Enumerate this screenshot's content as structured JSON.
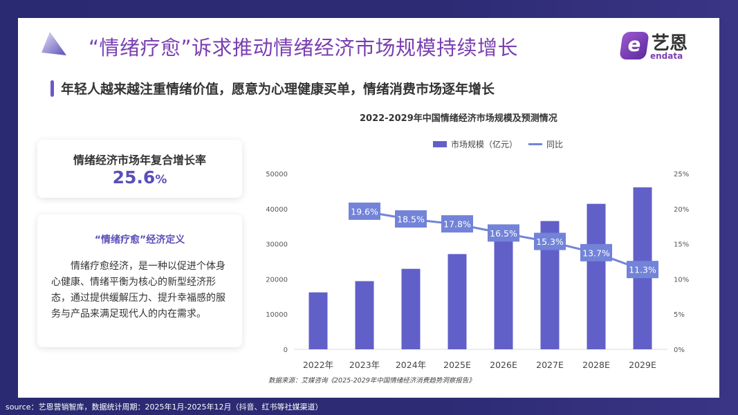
{
  "header": {
    "title": "“情绪疗愈”诉求推动情绪经济市场规模持续增长",
    "logo_cn": "艺恩",
    "logo_en": "endata"
  },
  "subtitle": "年轻人越来越注重情绪价值，愿意为心理健康买单，情绪消费市场逐年增长",
  "cagr": {
    "label": "情绪经济市场年复合增长率",
    "value": "25.6",
    "unit": "%"
  },
  "definition": {
    "heading": "“情绪疗愈”经济定义",
    "text": "情绪疗愈经济，是一种以促进个体身心健康、情绪平衡为核心的新型经济形态，通过提供缓解压力、提升幸福感的服务与产品来满足现代人的内在需求。"
  },
  "chart_source": "数据来源：艾媒咨询《2025-2029年中国情绪经济消费趋势洞察报告》",
  "footer": "source：艺恩营销智库，数据统计周期：2025年1月-2025年12月（抖音、红书等社媒渠道）",
  "chart_data": {
    "type": "bar+line",
    "title": "2022-2029年中国情绪经济市场规模及预测情况",
    "categories": [
      "2022年",
      "2023年",
      "2024年",
      "2025E",
      "2026E",
      "2027E",
      "2028E",
      "2029E"
    ],
    "series": [
      {
        "name": "市场规模（亿元）",
        "type": "bar",
        "axis": "left",
        "color": "#6160c8",
        "values": [
          16200,
          19400,
          22900,
          27100,
          31600,
          36500,
          41400,
          46100
        ]
      },
      {
        "name": "同比",
        "type": "line",
        "axis": "right",
        "color": "#7283d8",
        "values": [
          null,
          19.6,
          18.5,
          17.8,
          16.5,
          15.3,
          13.7,
          11.3
        ],
        "labels": [
          "",
          "19.6%",
          "18.5%",
          "17.8%",
          "16.5%",
          "15.3%",
          "13.7%",
          "11.3%"
        ]
      }
    ],
    "y_left": {
      "range": [
        0,
        50000
      ],
      "ticks": [
        "0",
        "10000",
        "20000",
        "30000",
        "40000",
        "50000"
      ]
    },
    "y_right": {
      "range": [
        0,
        25
      ],
      "ticks": [
        "0%",
        "5%",
        "10%",
        "15%",
        "20%",
        "25%"
      ]
    },
    "legend": "top",
    "grid": false
  }
}
